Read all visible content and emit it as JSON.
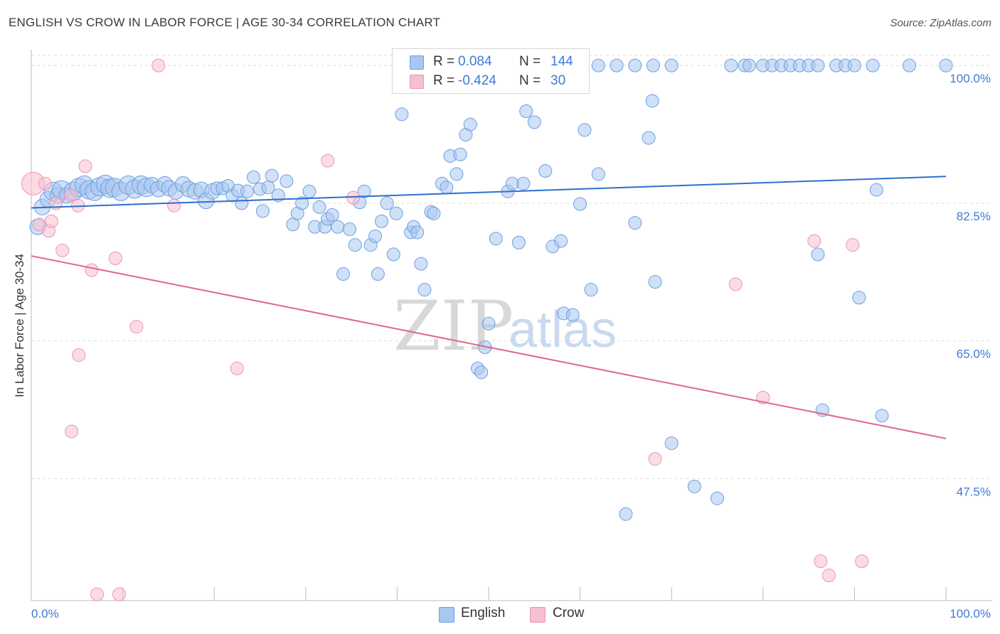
{
  "title": "ENGLISH VS CROW IN LABOR FORCE | AGE 30-34 CORRELATION CHART",
  "source": "Source: ZipAtlas.com",
  "watermark": {
    "zip": "ZIP",
    "atlas": "atlas"
  },
  "legend": {
    "rows": [
      {
        "r_label": "R =",
        "r_value": "0.084",
        "n_label": "N =",
        "n_value": "144"
      },
      {
        "r_label": "R =",
        "r_value": "-0.424",
        "n_label": "N =",
        "n_value": "30"
      }
    ]
  },
  "bottom_legend": {
    "english": "English",
    "crow": "Crow"
  },
  "colors": {
    "english_fill": "#a9c7f0",
    "english_stroke": "#6c9fe0",
    "english_line": "#2d6fd0",
    "crow_fill": "#f7bfd0",
    "crow_stroke": "#ec93b0",
    "crow_line": "#e06592",
    "axis_label": "#3d7ad6",
    "grid": "#dddddd"
  },
  "chart_data": {
    "type": "scatter",
    "title": "ENGLISH VS CROW IN LABOR FORCE | AGE 30-34 CORRELATION CHART",
    "xlabel": "",
    "ylabel": "In Labor Force | Age 30-34",
    "xlim": [
      0,
      100
    ],
    "ylim": [
      32,
      102
    ],
    "x_tick_labels": [
      "0.0%",
      "100.0%"
    ],
    "y_ticks": [
      47.5,
      65.0,
      82.5,
      100.0
    ],
    "y_tick_labels": [
      "47.5%",
      "65.0%",
      "82.5%",
      "100.0%"
    ],
    "grid": true,
    "legend_position": "top-center",
    "series": [
      {
        "name": "English",
        "r": 0.084,
        "n": 144,
        "trend": {
          "x": [
            0,
            100
          ],
          "y": [
            81.9,
            85.9
          ]
        },
        "points": [
          [
            0.7,
            79.5
          ],
          [
            1.2,
            82.0
          ],
          [
            1.8,
            83.0
          ],
          [
            2.4,
            84.0
          ],
          [
            2.9,
            83.5
          ],
          [
            3.3,
            84.2
          ],
          [
            3.9,
            83.5
          ],
          [
            4.6,
            84.0
          ],
          [
            5.2,
            84.5
          ],
          [
            5.8,
            84.8
          ],
          [
            6.3,
            84.2
          ],
          [
            6.9,
            84.0
          ],
          [
            7.5,
            84.6
          ],
          [
            8.1,
            84.9
          ],
          [
            8.6,
            84.4
          ],
          [
            9.1,
            84.5
          ],
          [
            9.8,
            84.0
          ],
          [
            10.6,
            84.8
          ],
          [
            11.3,
            84.3
          ],
          [
            12.0,
            84.8
          ],
          [
            12.6,
            84.5
          ],
          [
            13.2,
            84.8
          ],
          [
            13.9,
            84.3
          ],
          [
            14.6,
            84.9
          ],
          [
            15.1,
            84.4
          ],
          [
            15.8,
            84.0
          ],
          [
            16.6,
            84.9
          ],
          [
            17.2,
            84.3
          ],
          [
            17.9,
            84.0
          ],
          [
            18.6,
            84.2
          ],
          [
            19.1,
            82.8
          ],
          [
            19.8,
            84.0
          ],
          [
            20.3,
            84.4
          ],
          [
            20.9,
            84.4
          ],
          [
            21.5,
            84.7
          ],
          [
            22.0,
            83.5
          ],
          [
            22.6,
            84.1
          ],
          [
            23.0,
            82.5
          ],
          [
            23.6,
            84.0
          ],
          [
            24.3,
            85.8
          ],
          [
            25.0,
            84.3
          ],
          [
            25.3,
            81.5
          ],
          [
            25.9,
            84.5
          ],
          [
            26.3,
            86.0
          ],
          [
            27.0,
            83.5
          ],
          [
            27.9,
            85.3
          ],
          [
            28.6,
            79.8
          ],
          [
            29.1,
            81.2
          ],
          [
            29.6,
            82.5
          ],
          [
            30.4,
            84.0
          ],
          [
            31.0,
            79.5
          ],
          [
            31.5,
            82.0
          ],
          [
            32.1,
            79.5
          ],
          [
            32.4,
            80.5
          ],
          [
            32.9,
            81.0
          ],
          [
            33.5,
            79.5
          ],
          [
            34.1,
            73.5
          ],
          [
            34.8,
            79.2
          ],
          [
            35.4,
            77.2
          ],
          [
            35.9,
            82.6
          ],
          [
            36.4,
            84.0
          ],
          [
            37.1,
            77.2
          ],
          [
            37.6,
            78.3
          ],
          [
            37.9,
            73.5
          ],
          [
            38.3,
            80.2
          ],
          [
            38.9,
            82.5
          ],
          [
            39.6,
            76.0
          ],
          [
            39.9,
            81.2
          ],
          [
            40.5,
            93.8
          ],
          [
            41.5,
            78.8
          ],
          [
            41.8,
            79.5
          ],
          [
            42.2,
            78.8
          ],
          [
            42.6,
            74.8
          ],
          [
            43.0,
            71.5
          ],
          [
            43.7,
            81.4
          ],
          [
            44.0,
            81.2
          ],
          [
            44.9,
            85.0
          ],
          [
            45.4,
            84.5
          ],
          [
            45.8,
            88.5
          ],
          [
            46.5,
            86.2
          ],
          [
            46.9,
            88.7
          ],
          [
            47.5,
            91.2
          ],
          [
            48.0,
            92.5
          ],
          [
            48.8,
            61.5
          ],
          [
            49.2,
            61.0
          ],
          [
            49.6,
            64.2
          ],
          [
            50.0,
            67.2
          ],
          [
            50.8,
            78.0
          ],
          [
            52.1,
            84.0
          ],
          [
            52.6,
            85.0
          ],
          [
            53.3,
            77.5
          ],
          [
            53.8,
            85.0
          ],
          [
            54.1,
            94.2
          ],
          [
            55.0,
            92.8
          ],
          [
            56.2,
            86.6
          ],
          [
            57.0,
            77.0
          ],
          [
            57.9,
            77.7
          ],
          [
            58.2,
            68.5
          ],
          [
            59.2,
            68.3
          ],
          [
            60.0,
            82.4
          ],
          [
            60.5,
            91.8
          ],
          [
            61.2,
            71.5
          ],
          [
            62.0,
            86.2
          ],
          [
            66.0,
            80.0
          ],
          [
            67.5,
            90.8
          ],
          [
            67.9,
            95.5
          ],
          [
            68.2,
            72.5
          ],
          [
            70.0,
            52.0
          ],
          [
            72.5,
            46.5
          ],
          [
            75.0,
            45.0
          ],
          [
            76.5,
            100.0
          ],
          [
            78.0,
            100.0
          ],
          [
            80.0,
            100.0
          ],
          [
            81.0,
            100.0
          ],
          [
            82.0,
            100.0
          ],
          [
            83.0,
            100.0
          ],
          [
            84.0,
            100.0
          ],
          [
            85.0,
            100.0
          ],
          [
            86.0,
            100.0
          ],
          [
            86.5,
            56.2
          ],
          [
            86.0,
            76.0
          ],
          [
            88.0,
            100.0
          ],
          [
            89.0,
            100.0
          ],
          [
            90.0,
            100.0
          ],
          [
            90.5,
            70.5
          ],
          [
            92.0,
            100.0
          ],
          [
            93.0,
            55.5
          ],
          [
            96.0,
            100.0
          ],
          [
            100.0,
            100.0
          ],
          [
            44.0,
            100.0
          ],
          [
            50.5,
            100.0
          ],
          [
            52.0,
            100.0
          ],
          [
            53.0,
            100.0
          ],
          [
            55.5,
            100.0
          ],
          [
            57.0,
            100.0
          ],
          [
            59.5,
            100.0
          ],
          [
            62.0,
            100.0
          ],
          [
            64.0,
            100.0
          ],
          [
            66.0,
            100.0
          ],
          [
            68.0,
            100.0
          ],
          [
            70.0,
            100.0
          ],
          [
            92.4,
            84.2
          ],
          [
            65.0,
            43.0
          ],
          [
            78.5,
            100.0
          ]
        ]
      },
      {
        "name": "Crow",
        "r": -0.424,
        "n": 30,
        "trend": {
          "x": [
            0,
            100
          ],
          "y": [
            75.8,
            52.6
          ]
        },
        "points": [
          [
            0.2,
            85.0
          ],
          [
            0.9,
            79.8
          ],
          [
            1.5,
            85.0
          ],
          [
            1.9,
            79.0
          ],
          [
            2.2,
            80.2
          ],
          [
            2.7,
            82.5
          ],
          [
            3.4,
            76.5
          ],
          [
            4.3,
            83.5
          ],
          [
            4.4,
            53.5
          ],
          [
            5.1,
            82.2
          ],
          [
            5.2,
            63.2
          ],
          [
            5.9,
            87.2
          ],
          [
            6.6,
            74.0
          ],
          [
            7.2,
            32.8
          ],
          [
            9.6,
            32.8
          ],
          [
            9.2,
            75.5
          ],
          [
            11.5,
            66.8
          ],
          [
            13.9,
            100.0
          ],
          [
            15.6,
            82.2
          ],
          [
            22.5,
            61.5
          ],
          [
            32.4,
            87.9
          ],
          [
            35.2,
            83.2
          ],
          [
            68.2,
            50.0
          ],
          [
            77.0,
            72.2
          ],
          [
            80.0,
            57.8
          ],
          [
            85.6,
            77.7
          ],
          [
            86.3,
            37.0
          ],
          [
            87.2,
            35.2
          ],
          [
            89.8,
            77.2
          ],
          [
            90.8,
            37.0
          ]
        ]
      }
    ]
  }
}
